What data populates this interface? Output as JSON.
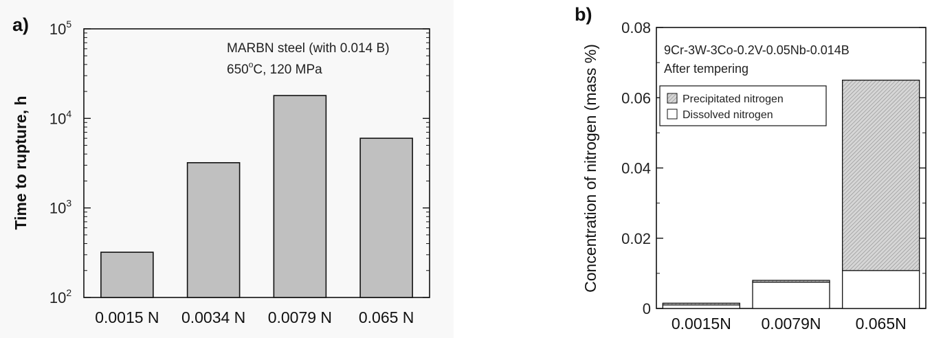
{
  "chart_data": [
    {
      "type": "bar",
      "panel_label": "a)",
      "ylabel": "Time to rupture, h",
      "yscale": "log",
      "ylim": [
        100,
        100000
      ],
      "yticks": [
        {
          "value": 100,
          "base": "10",
          "exp": "2"
        },
        {
          "value": 1000,
          "base": "10",
          "exp": "3"
        },
        {
          "value": 10000,
          "base": "10",
          "exp": "4"
        },
        {
          "value": 100000,
          "base": "10",
          "exp": "5"
        }
      ],
      "categories": [
        "0.0015 N",
        "0.0034 N",
        "0.0079 N",
        "0.065 N"
      ],
      "values": [
        320,
        3200,
        18000,
        6000
      ],
      "annotation": {
        "line1": "MARBN steel (with 0.014 B)",
        "line2_pre": "650",
        "line2_sup": "o",
        "line2_post": "C, 120 MPa"
      },
      "colors": {
        "bar": "#c0c0c0",
        "edge": "#111111"
      }
    },
    {
      "type": "bar",
      "stacked": true,
      "panel_label": "b)",
      "ylabel": "Concentration of nitrogen  (mass %)",
      "ylim": [
        0,
        0.08
      ],
      "yticks": [
        "0",
        "0.02",
        "0.04",
        "0.06",
        "0.08"
      ],
      "categories": [
        "0.0015N",
        "0.0079N",
        "0.065N"
      ],
      "series": [
        {
          "name": "Dissolved nitrogen",
          "values": [
            0.001,
            0.0075,
            0.0108
          ]
        },
        {
          "name": "Precipitated nitrogen",
          "values": [
            0.0005,
            0.0005,
            0.0542
          ]
        }
      ],
      "annotation": {
        "line1": "9Cr-3W-3Co-0.2V-0.05Nb-0.014B",
        "line2": "After tempering"
      },
      "legend_position": "top-left",
      "colors": {
        "precipitated": "#d2d2d2",
        "dissolved": "#ffffff",
        "edge": "#111111"
      }
    }
  ]
}
